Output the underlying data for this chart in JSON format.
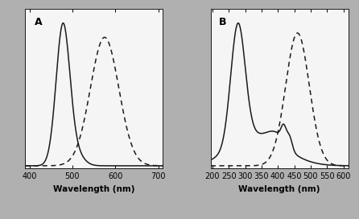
{
  "panel_A": {
    "label": "A",
    "xlim": [
      390,
      710
    ],
    "xticks": [
      400,
      500,
      600,
      700
    ],
    "xlabel": "Wavelength (nm)"
  },
  "panel_B": {
    "label": "B",
    "xlim": [
      195,
      615
    ],
    "xticks": [
      200,
      250,
      300,
      350,
      400,
      450,
      500,
      550,
      600
    ],
    "xlabel": "Wavelength (nm)"
  },
  "line_color": "#1a1a1a",
  "bg_color": "#f5f5f5",
  "outer_bg": "#b0b0b0",
  "panel_bg": "#e8e8e8"
}
